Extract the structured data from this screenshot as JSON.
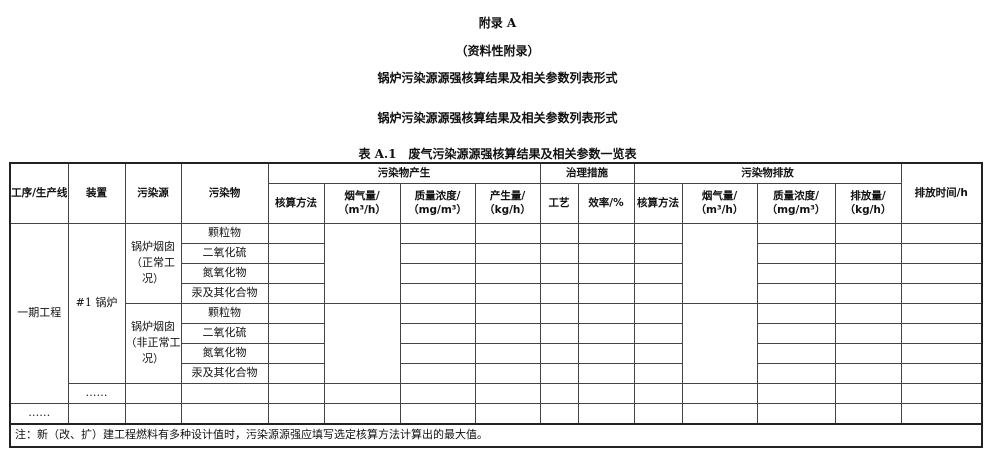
{
  "appendix": "附录 A",
  "appendix_type": "（资料性附录）",
  "heading1": "锅炉污染源源强核算结果及相关参数列表形式",
  "heading2": "锅炉污染源源强核算结果及相关参数列表形式",
  "table_caption": "表 A.1　废气污染源源强核算结果及相关参数一览表",
  "headers": {
    "process": "工序/生产线",
    "device": "装置",
    "source": "污染源",
    "pollutant": "污染物",
    "generation": "污染物产生",
    "treatment": "治理措施",
    "emission": "污染物排放",
    "emission_time": "排放时间/h",
    "gen_cols": [
      "核算方法",
      "烟气量/（m³/h）",
      "质量浓度/（mg/m³）",
      "产生量/（kg/h）"
    ],
    "treat_cols": [
      "工艺",
      "效率/%"
    ],
    "emit_cols": [
      "核算方法",
      "烟气量/（m³/h）",
      "质量浓度/（mg/m³）",
      "排放量/（kg/h）"
    ]
  },
  "body": {
    "process": "一期工程",
    "device": "#1 锅炉",
    "sources": [
      "锅炉烟囱（正常工况）",
      "锅炉烟囱（非正常工况）"
    ],
    "pollutants": [
      "颗粒物",
      "二氧化硫",
      "氮氧化物",
      "汞及其化合物"
    ],
    "more_device": "……",
    "more_process": "……"
  },
  "note": "注：新（改、扩）建工程燃料有多种设计值时，污染源源强应填写选定核算方法计算出的最大值。"
}
